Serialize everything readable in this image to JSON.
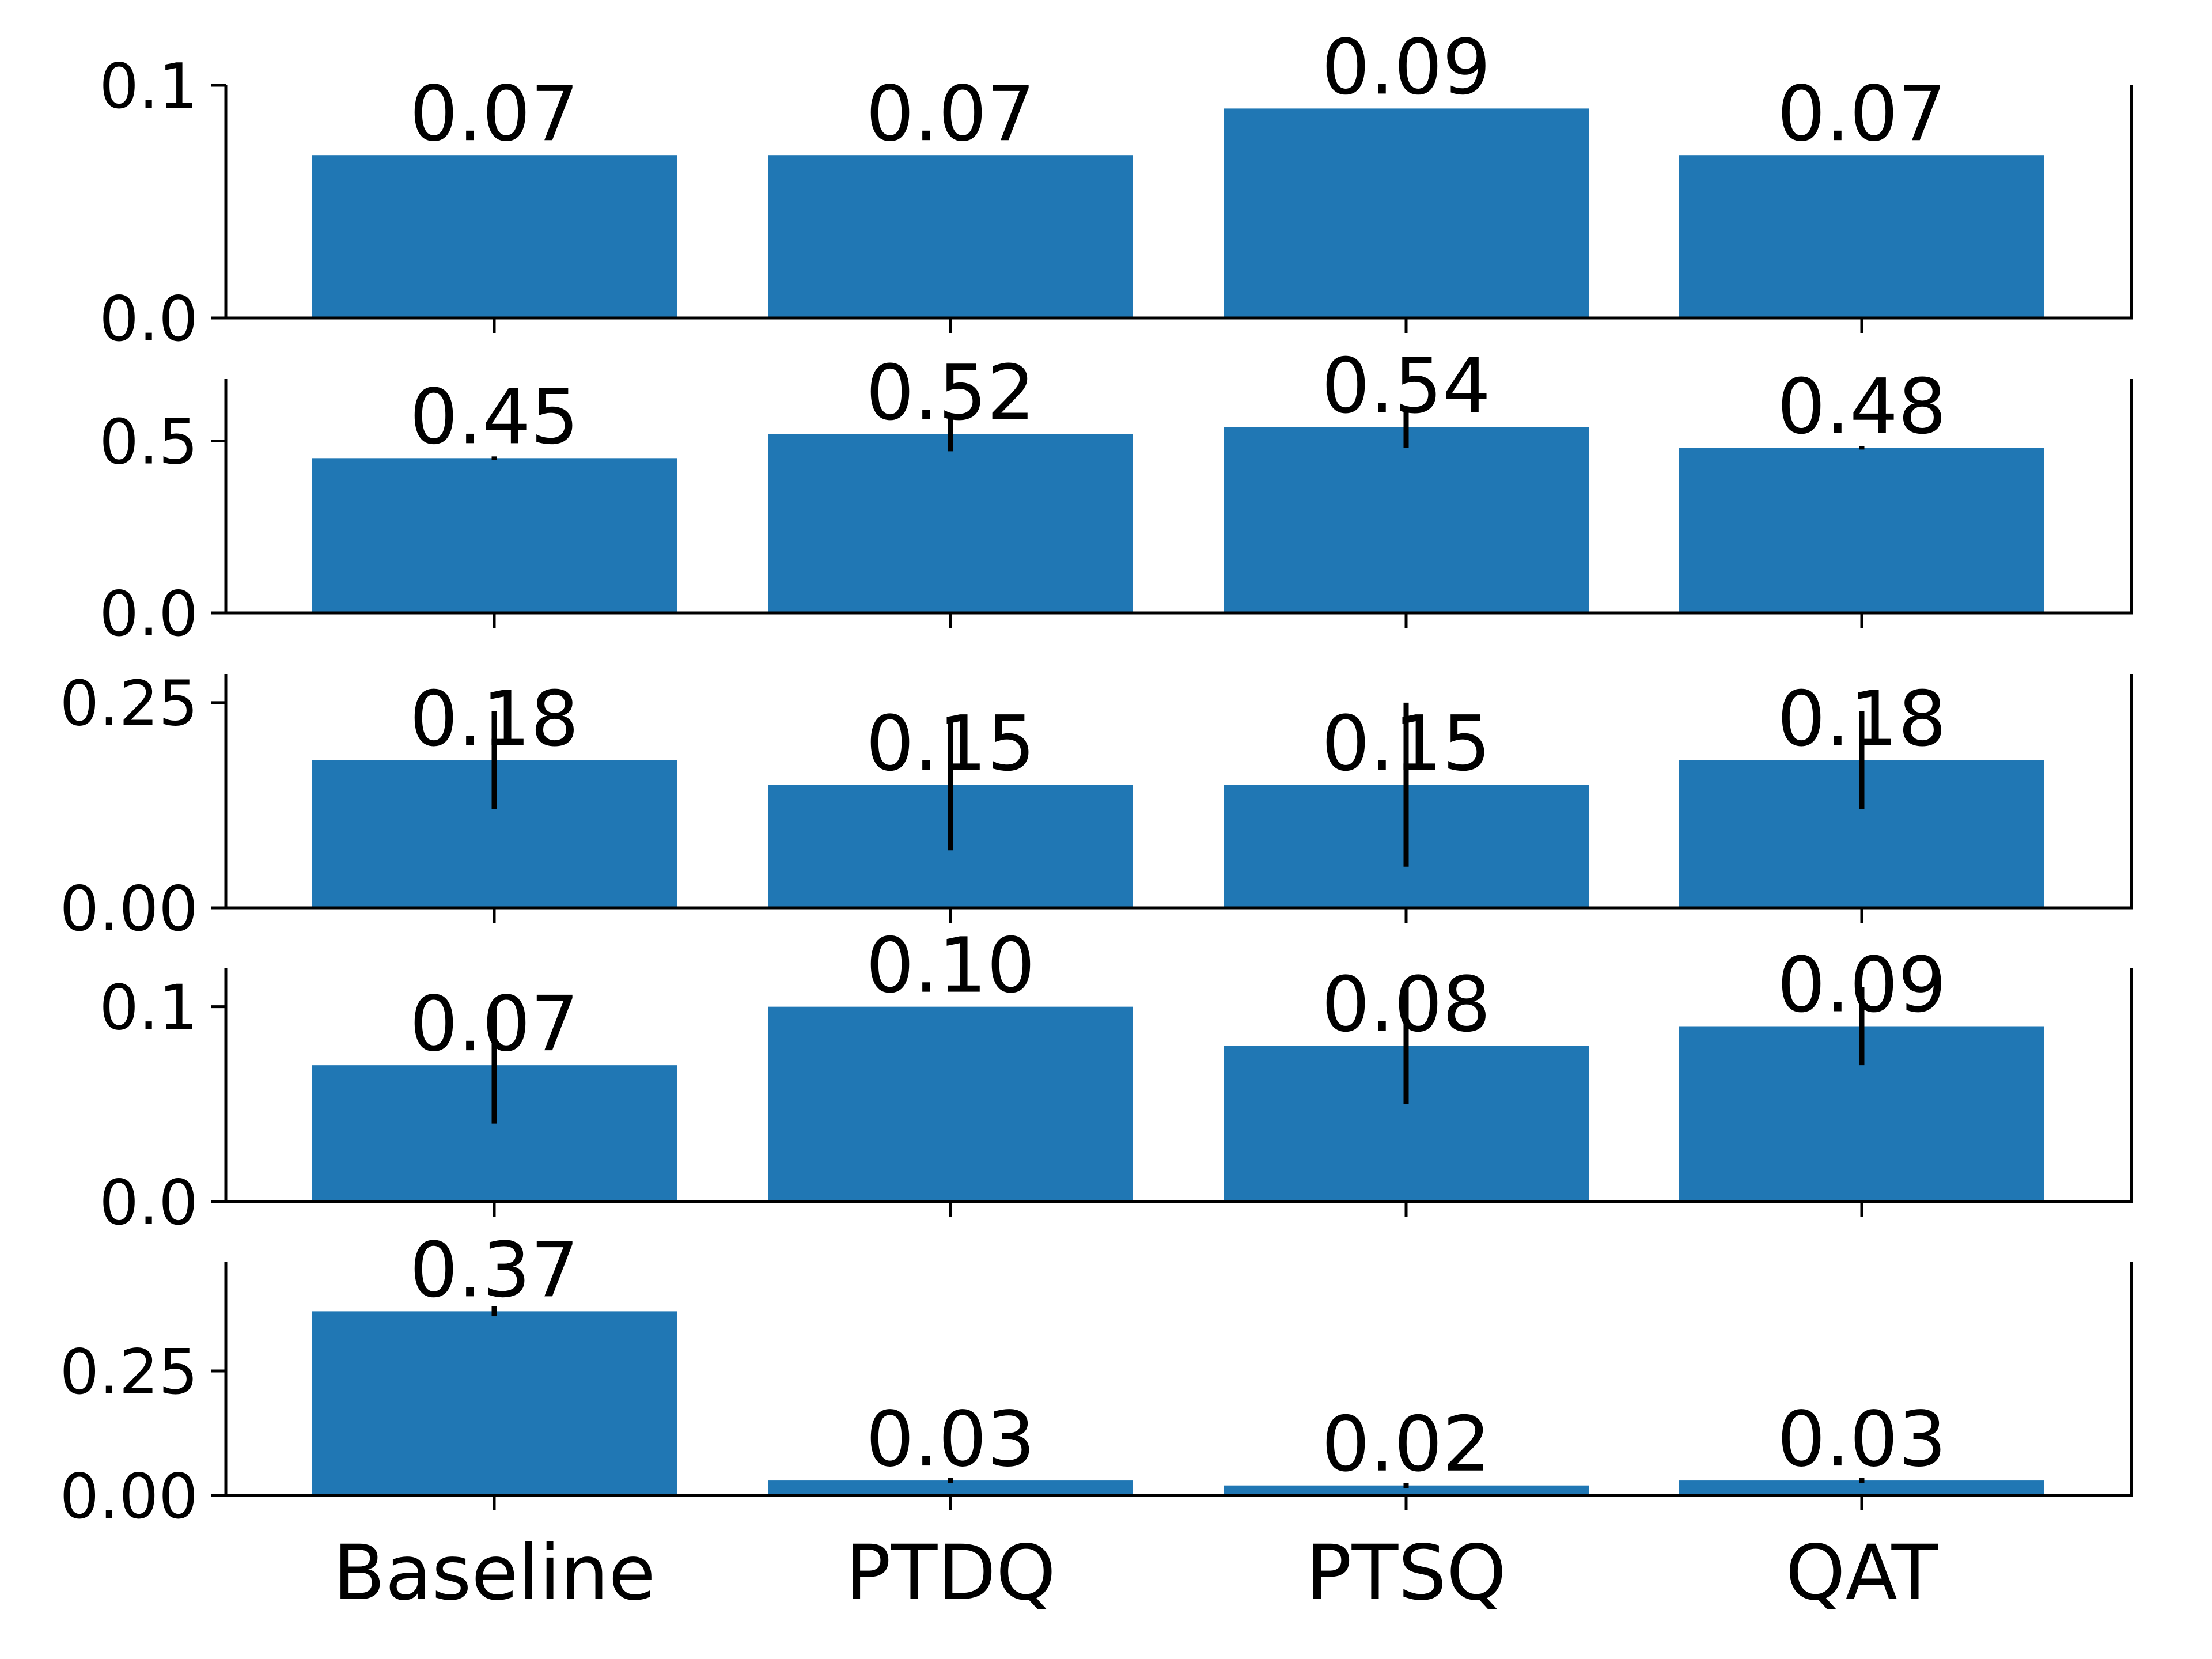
{
  "chart_data": [
    {
      "type": "bar",
      "categories": [
        "Baseline",
        "PTDQ",
        "PTSQ",
        "QAT"
      ],
      "values": [
        0.07,
        0.07,
        0.09,
        0.07
      ],
      "value_labels": [
        "0.07",
        "0.07",
        "0.09",
        "0.07"
      ],
      "error": [
        0,
        0,
        0,
        0
      ],
      "ylim": [
        0,
        0.1
      ],
      "yticks": [
        0.0,
        0.1
      ],
      "ytick_labels": [
        "0.0",
        "0.1"
      ],
      "xlabel": "",
      "ylabel": "",
      "title": "",
      "show_category_labels": false,
      "grid": false
    },
    {
      "type": "bar",
      "categories": [
        "Baseline",
        "PTDQ",
        "PTSQ",
        "QAT"
      ],
      "values": [
        0.45,
        0.52,
        0.54,
        0.48
      ],
      "value_labels": [
        "0.45",
        "0.52",
        "0.54",
        "0.48"
      ],
      "error": [
        0.005,
        0.05,
        0.06,
        0.005
      ],
      "ylim": [
        0,
        0.68
      ],
      "yticks": [
        0.0,
        0.5
      ],
      "ytick_labels": [
        "0.0",
        "0.5"
      ],
      "xlabel": "",
      "ylabel": "",
      "title": "",
      "show_category_labels": false,
      "grid": false
    },
    {
      "type": "bar",
      "categories": [
        "Baseline",
        "PTDQ",
        "PTSQ",
        "QAT"
      ],
      "values": [
        0.18,
        0.15,
        0.15,
        0.18
      ],
      "value_labels": [
        "0.18",
        "0.15",
        "0.15",
        "0.18"
      ],
      "error": [
        0.06,
        0.08,
        0.1,
        0.06
      ],
      "ylim": [
        0,
        0.285
      ],
      "yticks": [
        0.0,
        0.25
      ],
      "ytick_labels": [
        "0.00",
        "0.25"
      ],
      "xlabel": "",
      "ylabel": "",
      "title": "",
      "show_category_labels": false,
      "grid": false
    },
    {
      "type": "bar",
      "categories": [
        "Baseline",
        "PTDQ",
        "PTSQ",
        "QAT"
      ],
      "values": [
        0.07,
        0.1,
        0.08,
        0.09
      ],
      "value_labels": [
        "0.07",
        "0.10",
        "0.08",
        "0.09"
      ],
      "error": [
        0.03,
        0,
        0.03,
        0.02
      ],
      "ylim": [
        0,
        0.12
      ],
      "yticks": [
        0.0,
        0.1
      ],
      "ytick_labels": [
        "0.0",
        "0.1"
      ],
      "xlabel": "",
      "ylabel": "",
      "title": "",
      "show_category_labels": false,
      "grid": false
    },
    {
      "type": "bar",
      "categories": [
        "Baseline",
        "PTDQ",
        "PTSQ",
        "QAT"
      ],
      "values": [
        0.37,
        0.03,
        0.02,
        0.03
      ],
      "value_labels": [
        "0.37",
        "0.03",
        "0.02",
        "0.03"
      ],
      "error": [
        0.01,
        0.005,
        0.005,
        0.005
      ],
      "ylim": [
        0,
        0.47
      ],
      "yticks": [
        0.0,
        0.25
      ],
      "ytick_labels": [
        "0.00",
        "0.25"
      ],
      "xlabel": "",
      "ylabel": "",
      "title": "",
      "show_category_labels": true,
      "grid": false
    }
  ],
  "colors": {
    "bar": "#2077b4",
    "error_bar": "#000000",
    "axis": "#000000",
    "text": "#000000",
    "background": "#ffffff"
  }
}
